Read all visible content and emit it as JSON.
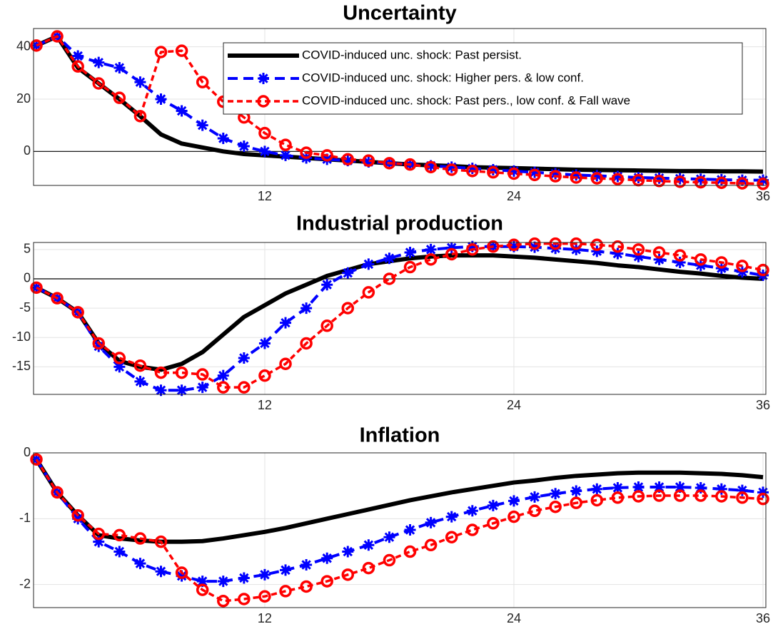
{
  "chart_data": [
    {
      "type": "line",
      "title": "Uncertainty",
      "x": [
        1,
        2,
        3,
        4,
        5,
        6,
        7,
        8,
        9,
        10,
        11,
        12,
        13,
        14,
        15,
        16,
        17,
        18,
        19,
        20,
        21,
        22,
        23,
        24,
        25,
        26,
        27,
        28,
        29,
        30,
        31,
        32,
        33,
        34,
        35,
        36
      ],
      "xlim": [
        1,
        36
      ],
      "xticks": [
        12,
        24,
        36
      ],
      "ylim": [
        -13,
        47
      ],
      "yticks": [
        0,
        20,
        40
      ],
      "grid": true,
      "zero_line": true,
      "legend": "upper right",
      "series": [
        {
          "name": "COVID-induced unc. shock: Past persist.",
          "color": "#000000",
          "values": [
            40.5,
            44,
            32,
            26,
            20,
            13.5,
            6.5,
            3,
            1.5,
            0,
            -1,
            -1.5,
            -2,
            -2.5,
            -3,
            -3.5,
            -4,
            -4.5,
            -5,
            -5.3,
            -5.6,
            -6,
            -6.2,
            -6.4,
            -6.6,
            -6.8,
            -7,
            -7.1,
            -7.2,
            -7.3,
            -7.4,
            -7.5,
            -7.5,
            -7.6,
            -7.6,
            -7.7
          ]
        },
        {
          "name": "COVID-induced unc. shock: Higher pers. & low conf.",
          "color": "#0000ff",
          "values": [
            40.5,
            44,
            36.5,
            34,
            32,
            26.5,
            20,
            15.5,
            10,
            5,
            2,
            0,
            -1.5,
            -2.5,
            -3,
            -3.5,
            -4,
            -4.5,
            -5,
            -5.5,
            -6,
            -6.5,
            -7,
            -7.5,
            -8,
            -8.5,
            -9,
            -9.3,
            -9.6,
            -10,
            -10.2,
            -10.4,
            -10.6,
            -10.8,
            -11,
            -11
          ]
        },
        {
          "name": "COVID-induced unc. shock: Past pers., low conf. & Fall wave",
          "color": "#ff0000",
          "values": [
            40.5,
            44,
            32.5,
            26,
            20.5,
            13.5,
            38,
            38.5,
            26.5,
            19,
            13,
            7,
            2.5,
            -0.5,
            -1.5,
            -3,
            -3.5,
            -4.5,
            -5,
            -6,
            -7,
            -7.5,
            -8,
            -8.5,
            -9,
            -9.5,
            -10,
            -10.3,
            -10.6,
            -11,
            -11.3,
            -11.6,
            -11.8,
            -12,
            -12.2,
            -12.4
          ]
        }
      ]
    },
    {
      "type": "line",
      "title": "Industrial production",
      "x": [
        1,
        2,
        3,
        4,
        5,
        6,
        7,
        8,
        9,
        10,
        11,
        12,
        13,
        14,
        15,
        16,
        17,
        18,
        19,
        20,
        21,
        22,
        23,
        24,
        25,
        26,
        27,
        28,
        29,
        30,
        31,
        32,
        33,
        34,
        35,
        36
      ],
      "xlim": [
        1,
        36
      ],
      "xticks": [
        12,
        24,
        36
      ],
      "ylim": [
        -19.7,
        6.2
      ],
      "yticks": [
        -15,
        -10,
        -5,
        0,
        5
      ],
      "grid": true,
      "zero_line": true,
      "series": [
        {
          "color": "#000000",
          "values": [
            -1.5,
            -3.3,
            -5.7,
            -11,
            -14,
            -15,
            -15.5,
            -14.5,
            -12.5,
            -9.5,
            -6.5,
            -4.5,
            -2.5,
            -1,
            0.5,
            1.5,
            2.5,
            3,
            3.5,
            3.8,
            4,
            4,
            4,
            3.8,
            3.6,
            3.3,
            3,
            2.7,
            2.3,
            2,
            1.6,
            1.2,
            0.9,
            0.5,
            0.2,
            0
          ]
        },
        {
          "color": "#0000ff",
          "values": [
            -1.5,
            -3.3,
            -5.7,
            -11.5,
            -15,
            -17.5,
            -19,
            -19,
            -18.5,
            -16.5,
            -13.5,
            -11,
            -7.5,
            -5,
            -1,
            1,
            2.5,
            3.5,
            4.5,
            5,
            5.3,
            5.5,
            5.5,
            5.5,
            5.4,
            5.2,
            5,
            4.7,
            4.3,
            3.8,
            3.3,
            2.8,
            2.3,
            1.8,
            1.2,
            0.6
          ]
        },
        {
          "color": "#ff0000",
          "values": [
            -1.5,
            -3.3,
            -5.7,
            -11,
            -13.5,
            -14.8,
            -16,
            -16,
            -16.3,
            -18.5,
            -18.5,
            -16.5,
            -14.5,
            -11,
            -8,
            -5,
            -2.3,
            0,
            2,
            3.3,
            4.2,
            5,
            5.5,
            5.8,
            6,
            6,
            6,
            5.8,
            5.5,
            5,
            4.5,
            4,
            3.3,
            2.8,
            2.2,
            1.5
          ]
        }
      ]
    },
    {
      "type": "line",
      "title": "Inflation",
      "x": [
        1,
        2,
        3,
        4,
        5,
        6,
        7,
        8,
        9,
        10,
        11,
        12,
        13,
        14,
        15,
        16,
        17,
        18,
        19,
        20,
        21,
        22,
        23,
        24,
        25,
        26,
        27,
        28,
        29,
        30,
        31,
        32,
        33,
        34,
        35,
        36
      ],
      "xlim": [
        1,
        36
      ],
      "xticks": [
        12,
        24,
        36
      ],
      "ylim": [
        -2.35,
        0
      ],
      "yticks": [
        -2,
        -1,
        0
      ],
      "grid": true,
      "zero_line": false,
      "series": [
        {
          "color": "#000000",
          "values": [
            -0.1,
            -0.6,
            -0.95,
            -1.25,
            -1.3,
            -1.33,
            -1.35,
            -1.35,
            -1.34,
            -1.3,
            -1.25,
            -1.2,
            -1.14,
            -1.07,
            -1.0,
            -0.93,
            -0.86,
            -0.79,
            -0.72,
            -0.66,
            -0.6,
            -0.55,
            -0.5,
            -0.45,
            -0.42,
            -0.38,
            -0.35,
            -0.33,
            -0.31,
            -0.3,
            -0.3,
            -0.3,
            -0.31,
            -0.32,
            -0.34,
            -0.37
          ]
        },
        {
          "color": "#0000ff",
          "values": [
            -0.1,
            -0.6,
            -1.0,
            -1.35,
            -1.5,
            -1.68,
            -1.8,
            -1.87,
            -1.95,
            -1.95,
            -1.9,
            -1.85,
            -1.78,
            -1.7,
            -1.6,
            -1.5,
            -1.4,
            -1.28,
            -1.17,
            -1.06,
            -0.97,
            -0.88,
            -0.8,
            -0.73,
            -0.67,
            -0.62,
            -0.58,
            -0.55,
            -0.53,
            -0.52,
            -0.52,
            -0.52,
            -0.53,
            -0.55,
            -0.57,
            -0.6
          ]
        },
        {
          "color": "#ff0000",
          "values": [
            -0.1,
            -0.6,
            -0.95,
            -1.23,
            -1.25,
            -1.3,
            -1.35,
            -1.82,
            -2.08,
            -2.25,
            -2.22,
            -2.18,
            -2.1,
            -2.03,
            -1.95,
            -1.85,
            -1.75,
            -1.63,
            -1.5,
            -1.4,
            -1.28,
            -1.17,
            -1.07,
            -0.97,
            -0.88,
            -0.82,
            -0.76,
            -0.72,
            -0.68,
            -0.66,
            -0.65,
            -0.65,
            -0.65,
            -0.66,
            -0.68,
            -0.7
          ]
        }
      ]
    }
  ]
}
